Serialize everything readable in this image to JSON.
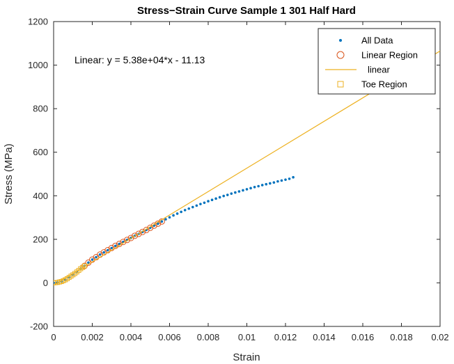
{
  "chart_data": {
    "type": "scatter",
    "title": "Stress−Strain Curve Sample 1 301 Half Hard",
    "xlabel": "Strain",
    "ylabel": "Stress (MPa)",
    "xlim": [
      0,
      0.02
    ],
    "ylim": [
      -200,
      1200
    ],
    "x_ticks": [
      0,
      0.002,
      0.004,
      0.006,
      0.008,
      0.01,
      0.012,
      0.014,
      0.016,
      0.018,
      0.02
    ],
    "x_tick_labels": [
      "0",
      "0.002",
      "0.004",
      "0.006",
      "0.008",
      "0.01",
      "0.012",
      "0.014",
      "0.016",
      "0.018",
      "0.02"
    ],
    "y_ticks": [
      -200,
      0,
      200,
      400,
      600,
      800,
      1000,
      1200
    ],
    "y_tick_labels": [
      "-200",
      "0",
      "200",
      "400",
      "600",
      "800",
      "1000",
      "1200"
    ],
    "grid": false,
    "legend_position": "top-right",
    "annotation": "Linear:  y = 5.38e+04*x - 11.13",
    "series": [
      {
        "name": "All Data",
        "kind": "points",
        "marker": "dot",
        "color": "#0072BD",
        "x": [
          0,
          0.0002,
          0.0004,
          0.0006,
          0.0008,
          0.001,
          0.0012,
          0.0014,
          0.0016,
          0.0018,
          0.002,
          0.0022,
          0.0024,
          0.0026,
          0.0028,
          0.003,
          0.0032,
          0.0034,
          0.0036,
          0.0038,
          0.004,
          0.0042,
          0.0044,
          0.0046,
          0.0048,
          0.005,
          0.0052,
          0.0054,
          0.0056,
          0.0058,
          0.006,
          0.0062,
          0.0064,
          0.0066,
          0.0068,
          0.007,
          0.0072,
          0.0074,
          0.0076,
          0.0078,
          0.008,
          0.0082,
          0.0084,
          0.0086,
          0.0088,
          0.009,
          0.0092,
          0.0094,
          0.0096,
          0.0098,
          0.01,
          0.0102,
          0.0104,
          0.0106,
          0.0108,
          0.011,
          0.0112,
          0.0114,
          0.0116,
          0.0118,
          0.012,
          0.0122,
          0.0124
        ],
        "y": [
          0,
          2,
          6,
          14,
          25,
          37,
          50,
          65,
          78,
          93,
          107,
          118,
          130,
          140,
          150,
          160,
          170,
          179,
          188,
          197,
          206,
          216,
          225,
          234,
          243,
          253,
          263,
          272,
          282,
          292,
          301,
          310,
          318,
          326,
          334,
          341,
          348,
          355,
          362,
          368,
          375,
          381,
          387,
          393,
          399,
          404,
          410,
          415,
          420,
          425,
          430,
          435,
          440,
          444,
          449,
          453,
          457,
          461,
          466,
          470,
          474,
          478,
          485
        ]
      },
      {
        "name": "Linear Region",
        "kind": "points",
        "marker": "circle",
        "color": "#D95319",
        "x": [
          0.0016,
          0.0018,
          0.002,
          0.0022,
          0.0024,
          0.0026,
          0.0028,
          0.003,
          0.0032,
          0.0034,
          0.0036,
          0.0038,
          0.004,
          0.0042,
          0.0044,
          0.0046,
          0.0048,
          0.005,
          0.0052,
          0.0054,
          0.0056
        ],
        "y": [
          78,
          93,
          107,
          118,
          130,
          140,
          150,
          160,
          170,
          179,
          188,
          197,
          206,
          216,
          225,
          234,
          243,
          253,
          263,
          272,
          282
        ]
      },
      {
        "name": "linear",
        "kind": "line",
        "color": "#EDB120",
        "slope": 53800,
        "intercept": -11.13,
        "x_range": [
          0,
          0.02
        ]
      },
      {
        "name": "Toe Region",
        "kind": "points",
        "marker": "square",
        "color": "#EDB120",
        "x": [
          0,
          0.0001,
          0.0002,
          0.0003,
          0.0004,
          0.0005,
          0.0006,
          0.0007,
          0.0008,
          0.0009,
          0.001,
          0.0011,
          0.0012,
          0.0013,
          0.0014,
          0.0015,
          0.0016
        ],
        "y": [
          0,
          1,
          2,
          4,
          6,
          10,
          14,
          19,
          25,
          31,
          37,
          43,
          50,
          57,
          65,
          71,
          78
        ]
      }
    ]
  }
}
